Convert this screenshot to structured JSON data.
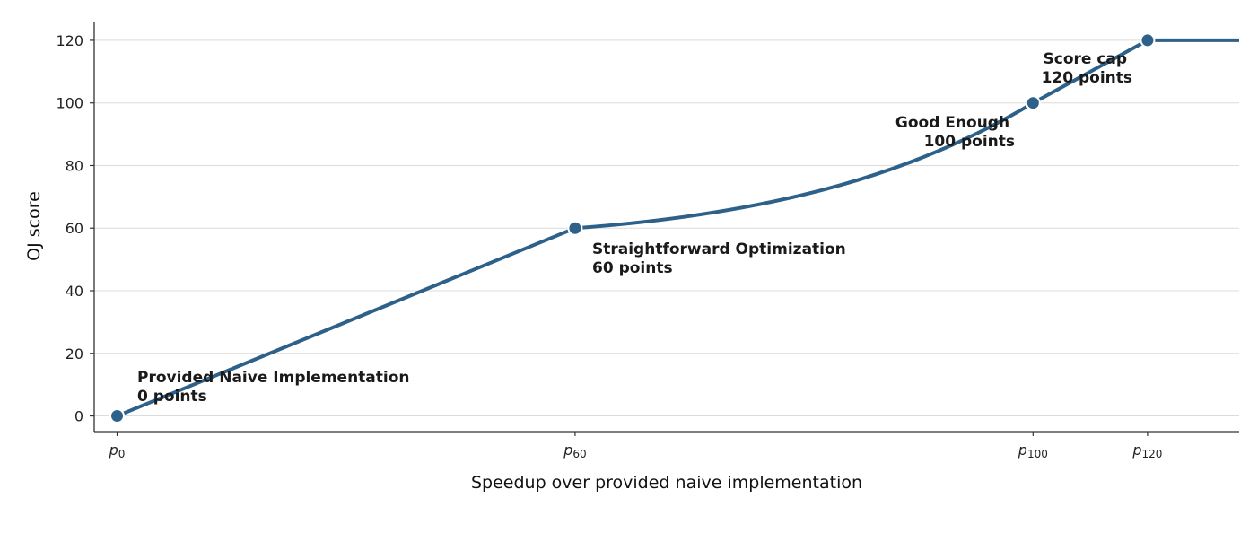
{
  "chart_data": {
    "type": "line",
    "xlabel": "Speedup over provided naive implementation",
    "ylabel": "OJ score",
    "ylim": [
      -5,
      126
    ],
    "yticks": [
      0,
      20,
      40,
      60,
      80,
      100,
      120
    ],
    "grid": "horizontal",
    "xticks": [
      {
        "sym": "p",
        "sub": "0",
        "x": 0
      },
      {
        "sym": "p",
        "sub": "60",
        "x": 60
      },
      {
        "sym": "p",
        "sub": "100",
        "x": 120
      },
      {
        "sym": "p",
        "sub": "120",
        "x": 135
      }
    ],
    "xlim": [
      -3,
      147
    ],
    "series": [
      {
        "color": "#2e6189",
        "points": [
          [
            0,
            0
          ],
          [
            60,
            60
          ],
          [
            120,
            100
          ],
          [
            135,
            120
          ]
        ],
        "line_end": [
          147,
          120
        ]
      }
    ],
    "annotations": [
      {
        "lines": [
          "Provided Naive Implementation",
          "0 points"
        ],
        "at": [
          0,
          0
        ]
      },
      {
        "lines": [
          "Straightforward Optimization",
          "60 points"
        ],
        "at": [
          60,
          60
        ]
      },
      {
        "lines": [
          "Good Enough",
          "100 points"
        ],
        "at": [
          120,
          100
        ]
      },
      {
        "lines": [
          "Score cap",
          "120 points"
        ],
        "at": [
          135,
          120
        ]
      }
    ]
  }
}
